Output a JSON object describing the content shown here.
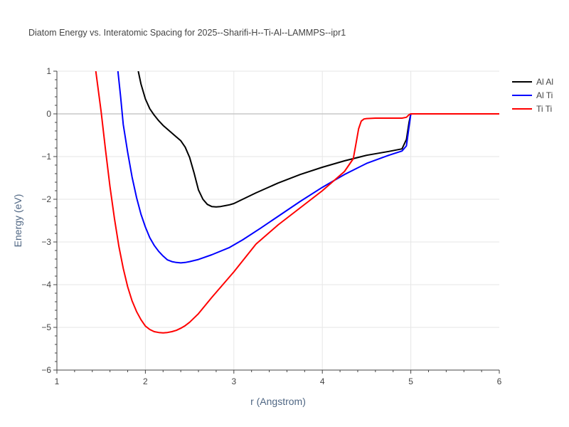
{
  "chart_data": {
    "type": "line",
    "title": "Diatom Energy vs. Interatomic Spacing for 2025--Sharifi-H--Ti-Al--LAMMPS--ipr1",
    "xlabel": "r (Angstrom)",
    "ylabel": "Energy (eV)",
    "xlim": [
      1,
      6
    ],
    "ylim": [
      -6,
      1
    ],
    "xticks": [
      "1",
      "2",
      "3",
      "4",
      "5",
      "6"
    ],
    "yticks": [
      "−6",
      "−5",
      "−4",
      "−3",
      "−2",
      "−1",
      "0",
      "1"
    ],
    "grid": true,
    "legend_position": "top-right",
    "series": [
      {
        "name": "Al Al",
        "color": "#000000",
        "x": [
          1.92,
          1.95,
          2.0,
          2.05,
          2.1,
          2.15,
          2.2,
          2.25,
          2.3,
          2.35,
          2.4,
          2.45,
          2.5,
          2.55,
          2.6,
          2.65,
          2.7,
          2.75,
          2.8,
          2.85,
          2.9,
          2.95,
          3.0,
          3.1,
          3.25,
          3.5,
          3.75,
          4.0,
          4.25,
          4.5,
          4.75,
          4.9,
          4.95,
          4.98,
          5.0,
          5.5,
          6.0
        ],
        "y": [
          1.0,
          0.7,
          0.35,
          0.12,
          -0.03,
          -0.16,
          -0.27,
          -0.36,
          -0.45,
          -0.54,
          -0.63,
          -0.78,
          -1.02,
          -1.38,
          -1.78,
          -2.0,
          -2.12,
          -2.17,
          -2.18,
          -2.17,
          -2.15,
          -2.13,
          -2.1,
          -2.0,
          -1.85,
          -1.62,
          -1.42,
          -1.25,
          -1.1,
          -0.97,
          -0.88,
          -0.82,
          -0.6,
          -0.2,
          0.0,
          0.0,
          0.0
        ]
      },
      {
        "name": "Al Ti",
        "color": "#0000ff",
        "x": [
          1.69,
          1.72,
          1.75,
          1.8,
          1.85,
          1.9,
          1.95,
          2.0,
          2.05,
          2.1,
          2.15,
          2.2,
          2.25,
          2.3,
          2.35,
          2.4,
          2.45,
          2.5,
          2.6,
          2.75,
          2.95,
          3.1,
          3.3,
          3.5,
          3.75,
          4.0,
          4.25,
          4.5,
          4.75,
          4.9,
          4.95,
          4.97,
          5.0,
          5.5,
          6.0
        ],
        "y": [
          1.0,
          0.4,
          -0.25,
          -0.9,
          -1.48,
          -1.96,
          -2.35,
          -2.65,
          -2.9,
          -3.08,
          -3.22,
          -3.33,
          -3.42,
          -3.46,
          -3.48,
          -3.49,
          -3.48,
          -3.46,
          -3.41,
          -3.3,
          -3.13,
          -2.95,
          -2.68,
          -2.4,
          -2.05,
          -1.72,
          -1.42,
          -1.16,
          -0.97,
          -0.87,
          -0.75,
          -0.45,
          0.0,
          0.0,
          0.0
        ]
      },
      {
        "name": "Ti Ti",
        "color": "#ff0000",
        "x": [
          1.44,
          1.5,
          1.55,
          1.6,
          1.65,
          1.7,
          1.75,
          1.8,
          1.85,
          1.9,
          1.95,
          2.0,
          2.05,
          2.1,
          2.15,
          2.2,
          2.25,
          2.3,
          2.35,
          2.4,
          2.45,
          2.5,
          2.6,
          2.75,
          3.0,
          3.25,
          3.5,
          4.0,
          4.25,
          4.35,
          4.38,
          4.41,
          4.44,
          4.47,
          4.5,
          4.6,
          4.75,
          4.9,
          4.95,
          4.98,
          5.0,
          5.5,
          6.0
        ],
        "y": [
          1.0,
          0.05,
          -0.85,
          -1.7,
          -2.45,
          -3.1,
          -3.62,
          -4.05,
          -4.38,
          -4.63,
          -4.82,
          -4.97,
          -5.05,
          -5.1,
          -5.12,
          -5.13,
          -5.12,
          -5.1,
          -5.07,
          -5.02,
          -4.96,
          -4.88,
          -4.68,
          -4.3,
          -3.7,
          -3.05,
          -2.6,
          -1.8,
          -1.35,
          -1.05,
          -0.7,
          -0.35,
          -0.17,
          -0.12,
          -0.11,
          -0.1,
          -0.1,
          -0.1,
          -0.08,
          -0.02,
          0.0,
          0.0,
          0.0
        ]
      }
    ]
  }
}
